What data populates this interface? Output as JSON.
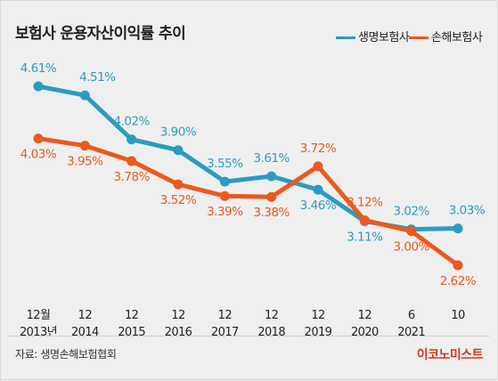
{
  "title": "보험사 운용자산이익률 추이",
  "source": "자료: 생명손해보험협회",
  "brand": "이코노미스트",
  "colors": {
    "life": "#2b9cc0",
    "nonlife": "#ea5a1e"
  },
  "chart_data": {
    "type": "line",
    "title": "보험사 운용자산이익률 추이",
    "legend_position": "top-right",
    "grid": false,
    "ylim": [
      2.4,
      4.8
    ],
    "categories": [
      {
        "top": "12월",
        "bottom": "2013년"
      },
      {
        "top": "12",
        "bottom": "2014"
      },
      {
        "top": "12",
        "bottom": "2015"
      },
      {
        "top": "12",
        "bottom": "2016"
      },
      {
        "top": "12",
        "bottom": "2017"
      },
      {
        "top": "12",
        "bottom": "2018"
      },
      {
        "top": "12",
        "bottom": "2019"
      },
      {
        "top": "12",
        "bottom": "2020"
      },
      {
        "top": "6",
        "bottom": "2021"
      },
      {
        "top": "10",
        "bottom": ""
      }
    ],
    "series": [
      {
        "name": "생명보험사",
        "color": "#2b9cc0",
        "values": [
          4.61,
          4.51,
          4.02,
          3.9,
          3.55,
          3.61,
          3.46,
          3.11,
          3.02,
          3.03
        ],
        "labels": [
          "4.61%",
          "4.51%",
          "4.02%",
          "3.90%",
          "3.55%",
          "3.61%",
          "3.46%",
          "3.11%",
          "3.02%",
          "3.03%"
        ]
      },
      {
        "name": "손해보험사",
        "color": "#ea5a1e",
        "values": [
          4.03,
          3.95,
          3.78,
          3.52,
          3.39,
          3.38,
          3.72,
          3.12,
          3.0,
          2.62
        ],
        "labels": [
          "4.03%",
          "3.95%",
          "3.78%",
          "3.52%",
          "3.39%",
          "3.38%",
          "3.72%",
          "3.12%",
          "3.00%",
          "2.62%"
        ]
      }
    ]
  }
}
